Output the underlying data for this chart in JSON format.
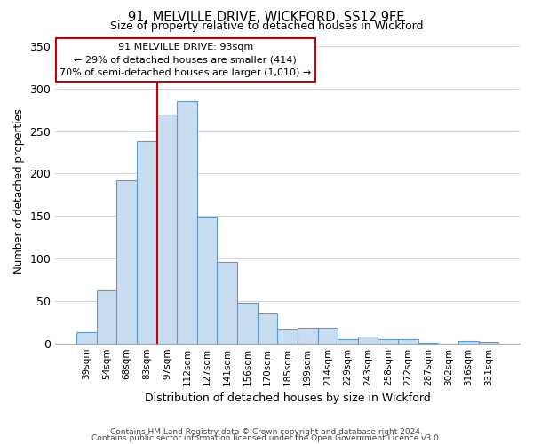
{
  "title": "91, MELVILLE DRIVE, WICKFORD, SS12 9FE",
  "subtitle": "Size of property relative to detached houses in Wickford",
  "xlabel": "Distribution of detached houses by size in Wickford",
  "ylabel": "Number of detached properties",
  "bar_labels": [
    "39sqm",
    "54sqm",
    "68sqm",
    "83sqm",
    "97sqm",
    "112sqm",
    "127sqm",
    "141sqm",
    "156sqm",
    "170sqm",
    "185sqm",
    "199sqm",
    "214sqm",
    "229sqm",
    "243sqm",
    "258sqm",
    "272sqm",
    "287sqm",
    "302sqm",
    "316sqm",
    "331sqm"
  ],
  "bar_values": [
    13,
    62,
    192,
    238,
    270,
    285,
    149,
    96,
    48,
    35,
    16,
    19,
    19,
    5,
    8,
    5,
    5,
    1,
    0,
    3,
    2
  ],
  "bar_color": "#c9ddf0",
  "bar_edge_color": "#5b9bd5",
  "vline_color": "#cc0000",
  "vline_position": 3.5,
  "annotation_title": "91 MELVILLE DRIVE: 93sqm",
  "annotation_line1": "← 29% of detached houses are smaller (414)",
  "annotation_line2": "70% of semi-detached houses are larger (1,010) →",
  "annotation_box_edge": "#cc0000",
  "ylim": [
    0,
    360
  ],
  "yticks": [
    0,
    50,
    100,
    150,
    200,
    250,
    300,
    350
  ],
  "footer1": "Contains HM Land Registry data © Crown copyright and database right 2024.",
  "footer2": "Contains public sector information licensed under the Open Government Licence v3.0."
}
